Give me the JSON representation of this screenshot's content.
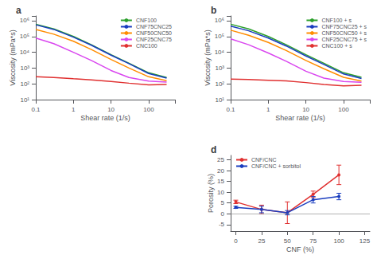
{
  "chart_data": [
    {
      "type": "line",
      "title": "a",
      "xlabel": "Shear rate (1/s)",
      "ylabel": "Viscosity (mPa*s)",
      "log": true,
      "grid": false,
      "legend": "upper right",
      "xlim": [
        0.1,
        500
      ],
      "ylim": [
        10,
        2000000.0
      ],
      "xticks": [
        0.1,
        1,
        10,
        100
      ],
      "yticks": [
        {
          "value": 10,
          "label": "10¹"
        },
        {
          "value": 100,
          "label": "10²"
        },
        {
          "value": 1000,
          "label": "10³"
        },
        {
          "value": 10000,
          "label": "10⁴"
        },
        {
          "value": 100000,
          "label": "10⁵"
        },
        {
          "value": 1000000,
          "label": "10⁶"
        }
      ],
      "x": [
        0.1,
        0.3,
        1,
        3,
        10,
        30,
        100,
        300
      ],
      "series": [
        {
          "name": "CNF100",
          "color": "#2ca02c",
          "values": [
            600000.0,
            300000.0,
            100000.0,
            30000.0,
            7000,
            2000,
            500,
            250
          ]
        },
        {
          "name": "CNF75CNC25",
          "color": "#1a3dbf",
          "values": [
            550000.0,
            280000.0,
            90000.0,
            28000.0,
            6500,
            1900,
            450,
            230
          ]
        },
        {
          "name": "CNF50CNC50",
          "color": "#ff8c00",
          "values": [
            280000.0,
            140000.0,
            50000.0,
            15000.0,
            3500,
            1000,
            280,
            160
          ]
        },
        {
          "name": "CNF25CNC75",
          "color": "#d946ef",
          "values": [
            80000.0,
            35000.0,
            10000.0,
            3000,
            700,
            250,
            150,
            130
          ]
        },
        {
          "name": "CNC100",
          "color": "#e03030",
          "values": [
            280,
            250,
            210,
            180,
            140,
            110,
            85,
            90
          ]
        }
      ]
    },
    {
      "type": "line",
      "title": "b",
      "xlabel": "Shear rate (1/s)",
      "ylabel": "Viscosity (mPa*s)",
      "log": true,
      "grid": false,
      "legend": "upper right",
      "xlim": [
        0.1,
        500
      ],
      "ylim": [
        10,
        2000000.0
      ],
      "xticks": [
        0.1,
        1,
        10,
        100
      ],
      "yticks": [
        {
          "value": 10,
          "label": "10¹"
        },
        {
          "value": 100,
          "label": "10²"
        },
        {
          "value": 1000,
          "label": "10³"
        },
        {
          "value": 10000,
          "label": "10⁴"
        },
        {
          "value": 100000,
          "label": "10⁵"
        },
        {
          "value": 1000000,
          "label": "10⁶"
        }
      ],
      "x": [
        0.1,
        0.3,
        1,
        3,
        10,
        30,
        100,
        300
      ],
      "series": [
        {
          "name": "CNF100 + s",
          "color": "#2ca02c",
          "values": [
            600000.0,
            300000.0,
            100000.0,
            30000.0,
            7000,
            2000,
            500,
            260
          ]
        },
        {
          "name": "CNF75CNC25 + s",
          "color": "#1a3dbf",
          "values": [
            450000.0,
            230000.0,
            80000.0,
            25000.0,
            5800,
            1700,
            420,
            220
          ]
        },
        {
          "name": "CNF50CNC50 + s",
          "color": "#ff8c00",
          "values": [
            250000.0,
            120000.0,
            42000.0,
            13000.0,
            3000,
            900,
            260,
            150
          ]
        },
        {
          "name": "CNF25CNC75 + s",
          "color": "#d946ef",
          "values": [
            70000.0,
            30000.0,
            9000,
            2700,
            630,
            230,
            140,
            125
          ]
        },
        {
          "name": "CNC100 + s",
          "color": "#e03030",
          "values": [
            200,
            190,
            170,
            155,
            120,
            90,
            75,
            80
          ]
        }
      ]
    },
    {
      "type": "line",
      "title": "d",
      "xlabel": "CNF (%)",
      "ylabel": "Porosity (%)",
      "grid": false,
      "legend": "upper left",
      "marker": "circle",
      "xlim": [
        -5,
        130
      ],
      "ylim": [
        -8,
        27
      ],
      "xticks": [
        0,
        25,
        50,
        75,
        100,
        125
      ],
      "yticks": [
        -5,
        0,
        5,
        10,
        15,
        20,
        25
      ],
      "hline": 0,
      "x": [
        0,
        25,
        50,
        75,
        100
      ],
      "series": [
        {
          "name": "CNF/CNC",
          "color": "#e03030",
          "values": [
            5.5,
            2.0,
            0.5,
            9.0,
            18.0
          ],
          "yerr": [
            0.8,
            2.0,
            5.0,
            1.5,
            4.5
          ]
        },
        {
          "name": "CNF/CNC + sorbitol",
          "color": "#1a3dbf",
          "values": [
            3.0,
            2.0,
            0.5,
            6.5,
            8.0
          ],
          "yerr": [
            0.5,
            1.5,
            1.0,
            1.5,
            1.5
          ]
        }
      ]
    }
  ]
}
